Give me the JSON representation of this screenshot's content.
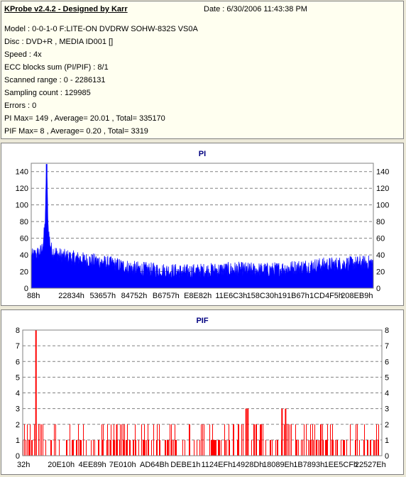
{
  "header": {
    "title": "KProbe v2.4.2 - Designed by Karr",
    "date": "Date : 6/30/2006 11:43:38 PM",
    "lines": [
      "Model : 0-0-1-0 F:LITE-ON DVDRW SOHW-832S  VS0A",
      "Disc : DVD+R , MEDIA ID001 []",
      "Speed : 4x",
      "ECC blocks sum (PI/PIF) : 8/1",
      "Scanned range : 0 - 2286131",
      "Sampling count : 129985",
      "Errors : 0",
      "PI Max= 149 , Average= 20.01 , Total= 335170",
      "PIF Max= 8 , Average= 0.20 , Total= 3319"
    ]
  },
  "colors": {
    "pi": "#0000ff",
    "pif": "#ff0000",
    "title": "#000080",
    "grid": "#808080"
  },
  "chart_data": [
    {
      "type": "area",
      "title": "PI",
      "ylim": [
        0,
        150
      ],
      "yticks": [
        0,
        20,
        40,
        60,
        80,
        100,
        120,
        140
      ],
      "grid": true,
      "xticklabels": [
        "88h",
        "22834h",
        "53657h",
        "84752h",
        "B6757h",
        "E8E82h",
        "11E6C3h",
        "158C30h",
        "191B67h",
        "1CD4F5h",
        "208EB9h"
      ],
      "profile_x": [
        0,
        0.01,
        0.02,
        0.03,
        0.035,
        0.04,
        0.045,
        0.05,
        0.055,
        0.06,
        0.07,
        0.08,
        0.1,
        0.13,
        0.16,
        0.2,
        0.25,
        0.3,
        0.35,
        0.4,
        0.45,
        0.5,
        0.55,
        0.6,
        0.65,
        0.7,
        0.75,
        0.8,
        0.85,
        0.9,
        0.95,
        1.0
      ],
      "profile_y": [
        38,
        40,
        42,
        45,
        55,
        75,
        149,
        70,
        55,
        45,
        43,
        40,
        38,
        36,
        34,
        32,
        28,
        24,
        22,
        21,
        20,
        21,
        22,
        23,
        22,
        22,
        24,
        26,
        28,
        29,
        30,
        31
      ],
      "max": 149
    },
    {
      "type": "bar",
      "title": "PIF",
      "ylim": [
        0,
        8
      ],
      "yticks": [
        0,
        1,
        2,
        3,
        4,
        5,
        6,
        7,
        8
      ],
      "grid": true,
      "xticklabels": [
        "32h",
        "20E10h",
        "4EE89h",
        "7E010h",
        "AD64Bh",
        "DEBE1h",
        "1124EFh",
        "14928Dh",
        "18089Eh",
        "1B7893h",
        "1EE5CFh",
        "22527Eh"
      ],
      "spikes": [
        {
          "x": 0.035,
          "y": 8
        },
        {
          "x": 0.26,
          "y": 2
        },
        {
          "x": 0.62,
          "y": 3
        },
        {
          "x": 0.625,
          "y": 3
        },
        {
          "x": 0.72,
          "y": 3
        },
        {
          "x": 0.73,
          "y": 3
        }
      ],
      "max": 8
    }
  ]
}
